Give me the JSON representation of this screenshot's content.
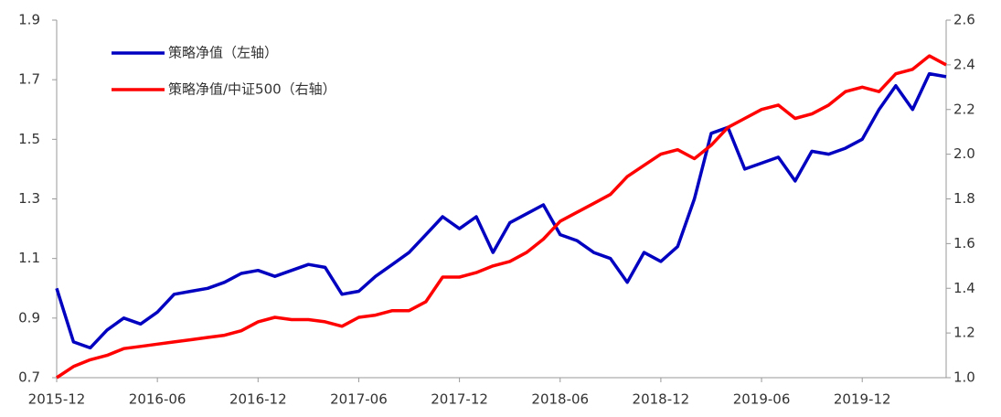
{
  "chart_data": {
    "type": "line",
    "x": [
      "2015-12",
      "2016-01",
      "2016-02",
      "2016-03",
      "2016-04",
      "2016-05",
      "2016-06",
      "2016-07",
      "2016-08",
      "2016-09",
      "2016-10",
      "2016-11",
      "2016-12",
      "2017-01",
      "2017-02",
      "2017-03",
      "2017-04",
      "2017-05",
      "2017-06",
      "2017-07",
      "2017-08",
      "2017-09",
      "2017-10",
      "2017-11",
      "2017-12",
      "2018-01",
      "2018-02",
      "2018-03",
      "2018-04",
      "2018-05",
      "2018-06",
      "2018-07",
      "2018-08",
      "2018-09",
      "2018-10",
      "2018-11",
      "2018-12",
      "2019-01",
      "2019-02",
      "2019-03",
      "2019-04",
      "2019-05",
      "2019-06",
      "2019-07",
      "2019-08",
      "2019-09",
      "2019-10",
      "2019-11",
      "2019-12",
      "2020-01",
      "2020-02",
      "2020-03",
      "2020-04",
      "2020-05"
    ],
    "series": [
      {
        "name": "策略净值（左轴）",
        "color": "#0000c0",
        "axis": "y",
        "values": [
          1.0,
          0.82,
          0.8,
          0.86,
          0.9,
          0.88,
          0.92,
          0.98,
          0.99,
          1.0,
          1.02,
          1.05,
          1.06,
          1.04,
          1.06,
          1.08,
          1.07,
          0.98,
          0.99,
          1.04,
          1.08,
          1.12,
          1.18,
          1.24,
          1.2,
          1.24,
          1.12,
          1.22,
          1.25,
          1.28,
          1.18,
          1.16,
          1.12,
          1.1,
          1.02,
          1.12,
          1.09,
          1.14,
          1.3,
          1.52,
          1.54,
          1.4,
          1.42,
          1.44,
          1.36,
          1.46,
          1.45,
          1.47,
          1.5,
          1.6,
          1.68,
          1.6,
          1.72,
          1.71
        ]
      },
      {
        "name": "策略净值/中证500（右轴）",
        "color": "#ff0000",
        "axis": "y2",
        "values": [
          1.0,
          1.05,
          1.08,
          1.1,
          1.13,
          1.14,
          1.15,
          1.16,
          1.17,
          1.18,
          1.19,
          1.21,
          1.25,
          1.27,
          1.26,
          1.26,
          1.25,
          1.23,
          1.27,
          1.28,
          1.3,
          1.3,
          1.34,
          1.45,
          1.45,
          1.47,
          1.5,
          1.52,
          1.56,
          1.62,
          1.7,
          1.74,
          1.78,
          1.82,
          1.9,
          1.95,
          2.0,
          2.02,
          1.98,
          2.04,
          2.12,
          2.16,
          2.2,
          2.22,
          2.16,
          2.18,
          2.22,
          2.28,
          2.3,
          2.28,
          2.36,
          2.38,
          2.44,
          2.4
        ]
      }
    ],
    "xticks": [
      "2015-12",
      "2016-06",
      "2016-12",
      "2017-06",
      "2017-12",
      "2018-06",
      "2018-12",
      "2019-06",
      "2019-12"
    ],
    "ylim": [
      0.7,
      1.9
    ],
    "yticks": [
      0.7,
      0.9,
      1.1,
      1.3,
      1.5,
      1.7,
      1.9
    ],
    "y2lim": [
      1.0,
      2.6
    ],
    "y2ticks": [
      {
        "value": 1.0,
        "label": "1.0"
      },
      1.2,
      1.4,
      1.6,
      1.8,
      {
        "value": 2.0,
        "label": "2.0"
      },
      2.2,
      2.4,
      2.6
    ],
    "legend": "upper-left"
  }
}
